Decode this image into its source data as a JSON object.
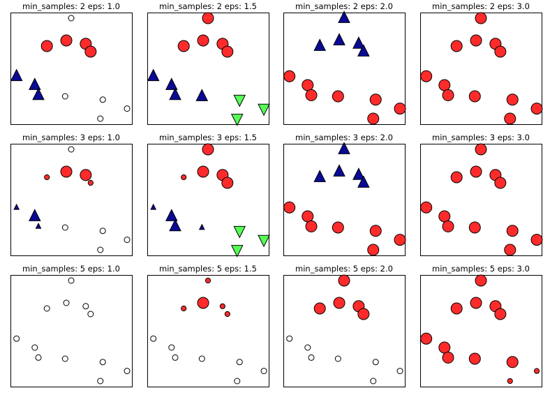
{
  "chart_data": {
    "type": "scatter",
    "layout": {
      "rows": 3,
      "cols": 4
    },
    "colors": {
      "noise": "#ffffff",
      "cluster_0": "#ff2b2b",
      "cluster_1": "#0a0a96",
      "cluster_2": "#55ff55",
      "edge": "#000000"
    },
    "markers": {
      "cluster_0": "circle",
      "cluster_1": "triangle-up",
      "cluster_2": "triangle-down",
      "noise": "circle"
    },
    "xlim": [
      0,
      10
    ],
    "ylim": [
      0,
      10
    ],
    "points": [
      {
        "x": 5.0,
        "y": 9.5
      },
      {
        "x": 3.0,
        "y": 7.0
      },
      {
        "x": 4.6,
        "y": 7.5
      },
      {
        "x": 6.2,
        "y": 7.2
      },
      {
        "x": 6.6,
        "y": 6.5
      },
      {
        "x": 0.5,
        "y": 4.3
      },
      {
        "x": 2.0,
        "y": 3.5
      },
      {
        "x": 2.3,
        "y": 2.6
      },
      {
        "x": 4.5,
        "y": 2.5
      },
      {
        "x": 7.6,
        "y": 2.2
      },
      {
        "x": 9.6,
        "y": 1.4
      },
      {
        "x": 7.4,
        "y": 0.5
      }
    ],
    "panels": [
      {
        "title": "min_samples: 2 eps: 1.0",
        "min_samples": 2,
        "eps": 1.0,
        "labels": [
          -1,
          0,
          0,
          0,
          0,
          1,
          1,
          1,
          -1,
          -1,
          -1,
          -1
        ],
        "core": [
          0,
          1,
          1,
          1,
          1,
          1,
          1,
          1,
          0,
          0,
          0,
          0
        ]
      },
      {
        "title": "min_samples: 2 eps: 1.5",
        "min_samples": 2,
        "eps": 1.5,
        "labels": [
          0,
          0,
          0,
          0,
          0,
          1,
          1,
          1,
          1,
          2,
          2,
          2
        ],
        "core": [
          1,
          1,
          1,
          1,
          1,
          1,
          1,
          1,
          1,
          1,
          1,
          1
        ]
      },
      {
        "title": "min_samples: 2 eps: 2.0",
        "min_samples": 2,
        "eps": 2.0,
        "labels": [
          1,
          1,
          1,
          1,
          1,
          0,
          0,
          0,
          0,
          0,
          0,
          0
        ],
        "core": [
          1,
          1,
          1,
          1,
          1,
          1,
          1,
          1,
          1,
          1,
          1,
          1
        ]
      },
      {
        "title": "min_samples: 2 eps: 3.0",
        "min_samples": 2,
        "eps": 3.0,
        "labels": [
          0,
          0,
          0,
          0,
          0,
          0,
          0,
          0,
          0,
          0,
          0,
          0
        ],
        "core": [
          1,
          1,
          1,
          1,
          1,
          1,
          1,
          1,
          1,
          1,
          1,
          1
        ]
      },
      {
        "title": "min_samples: 3 eps: 1.0",
        "min_samples": 3,
        "eps": 1.0,
        "labels": [
          -1,
          0,
          0,
          0,
          0,
          1,
          1,
          1,
          -1,
          -1,
          -1,
          -1
        ],
        "core": [
          0,
          0,
          1,
          1,
          0,
          0,
          1,
          0,
          0,
          0,
          0,
          0
        ]
      },
      {
        "title": "min_samples: 3 eps: 1.5",
        "min_samples": 3,
        "eps": 1.5,
        "labels": [
          0,
          0,
          0,
          0,
          0,
          1,
          1,
          1,
          1,
          2,
          2,
          2
        ],
        "core": [
          1,
          0,
          1,
          1,
          1,
          0,
          1,
          1,
          0,
          1,
          1,
          1
        ]
      },
      {
        "title": "min_samples: 3 eps: 2.0",
        "min_samples": 3,
        "eps": 2.0,
        "labels": [
          1,
          1,
          1,
          1,
          1,
          0,
          0,
          0,
          0,
          0,
          0,
          0
        ],
        "core": [
          1,
          1,
          1,
          1,
          1,
          1,
          1,
          1,
          1,
          1,
          1,
          1
        ]
      },
      {
        "title": "min_samples: 3 eps: 3.0",
        "min_samples": 3,
        "eps": 3.0,
        "labels": [
          0,
          0,
          0,
          0,
          0,
          0,
          0,
          0,
          0,
          0,
          0,
          0
        ],
        "core": [
          1,
          1,
          1,
          1,
          1,
          1,
          1,
          1,
          1,
          1,
          1,
          1
        ]
      },
      {
        "title": "min_samples: 5 eps: 1.0",
        "min_samples": 5,
        "eps": 1.0,
        "labels": [
          -1,
          -1,
          -1,
          -1,
          -1,
          -1,
          -1,
          -1,
          -1,
          -1,
          -1,
          -1
        ],
        "core": [
          0,
          0,
          0,
          0,
          0,
          0,
          0,
          0,
          0,
          0,
          0,
          0
        ]
      },
      {
        "title": "min_samples: 5 eps: 1.5",
        "min_samples": 5,
        "eps": 1.5,
        "labels": [
          0,
          0,
          0,
          0,
          0,
          -1,
          -1,
          -1,
          -1,
          -1,
          -1,
          -1
        ],
        "core": [
          0,
          0,
          1,
          0,
          0,
          0,
          0,
          0,
          0,
          0,
          0,
          0
        ]
      },
      {
        "title": "min_samples: 5 eps: 2.0",
        "min_samples": 5,
        "eps": 2.0,
        "labels": [
          0,
          0,
          0,
          0,
          0,
          -1,
          -1,
          -1,
          -1,
          -1,
          -1,
          -1
        ],
        "core": [
          1,
          1,
          1,
          1,
          1,
          0,
          0,
          0,
          0,
          0,
          0,
          0
        ]
      },
      {
        "title": "min_samples: 5 eps: 3.0",
        "min_samples": 5,
        "eps": 3.0,
        "labels": [
          0,
          0,
          0,
          0,
          0,
          0,
          0,
          0,
          0,
          0,
          0,
          0
        ],
        "core": [
          1,
          1,
          1,
          1,
          1,
          1,
          1,
          1,
          1,
          1,
          0,
          0
        ]
      }
    ]
  }
}
